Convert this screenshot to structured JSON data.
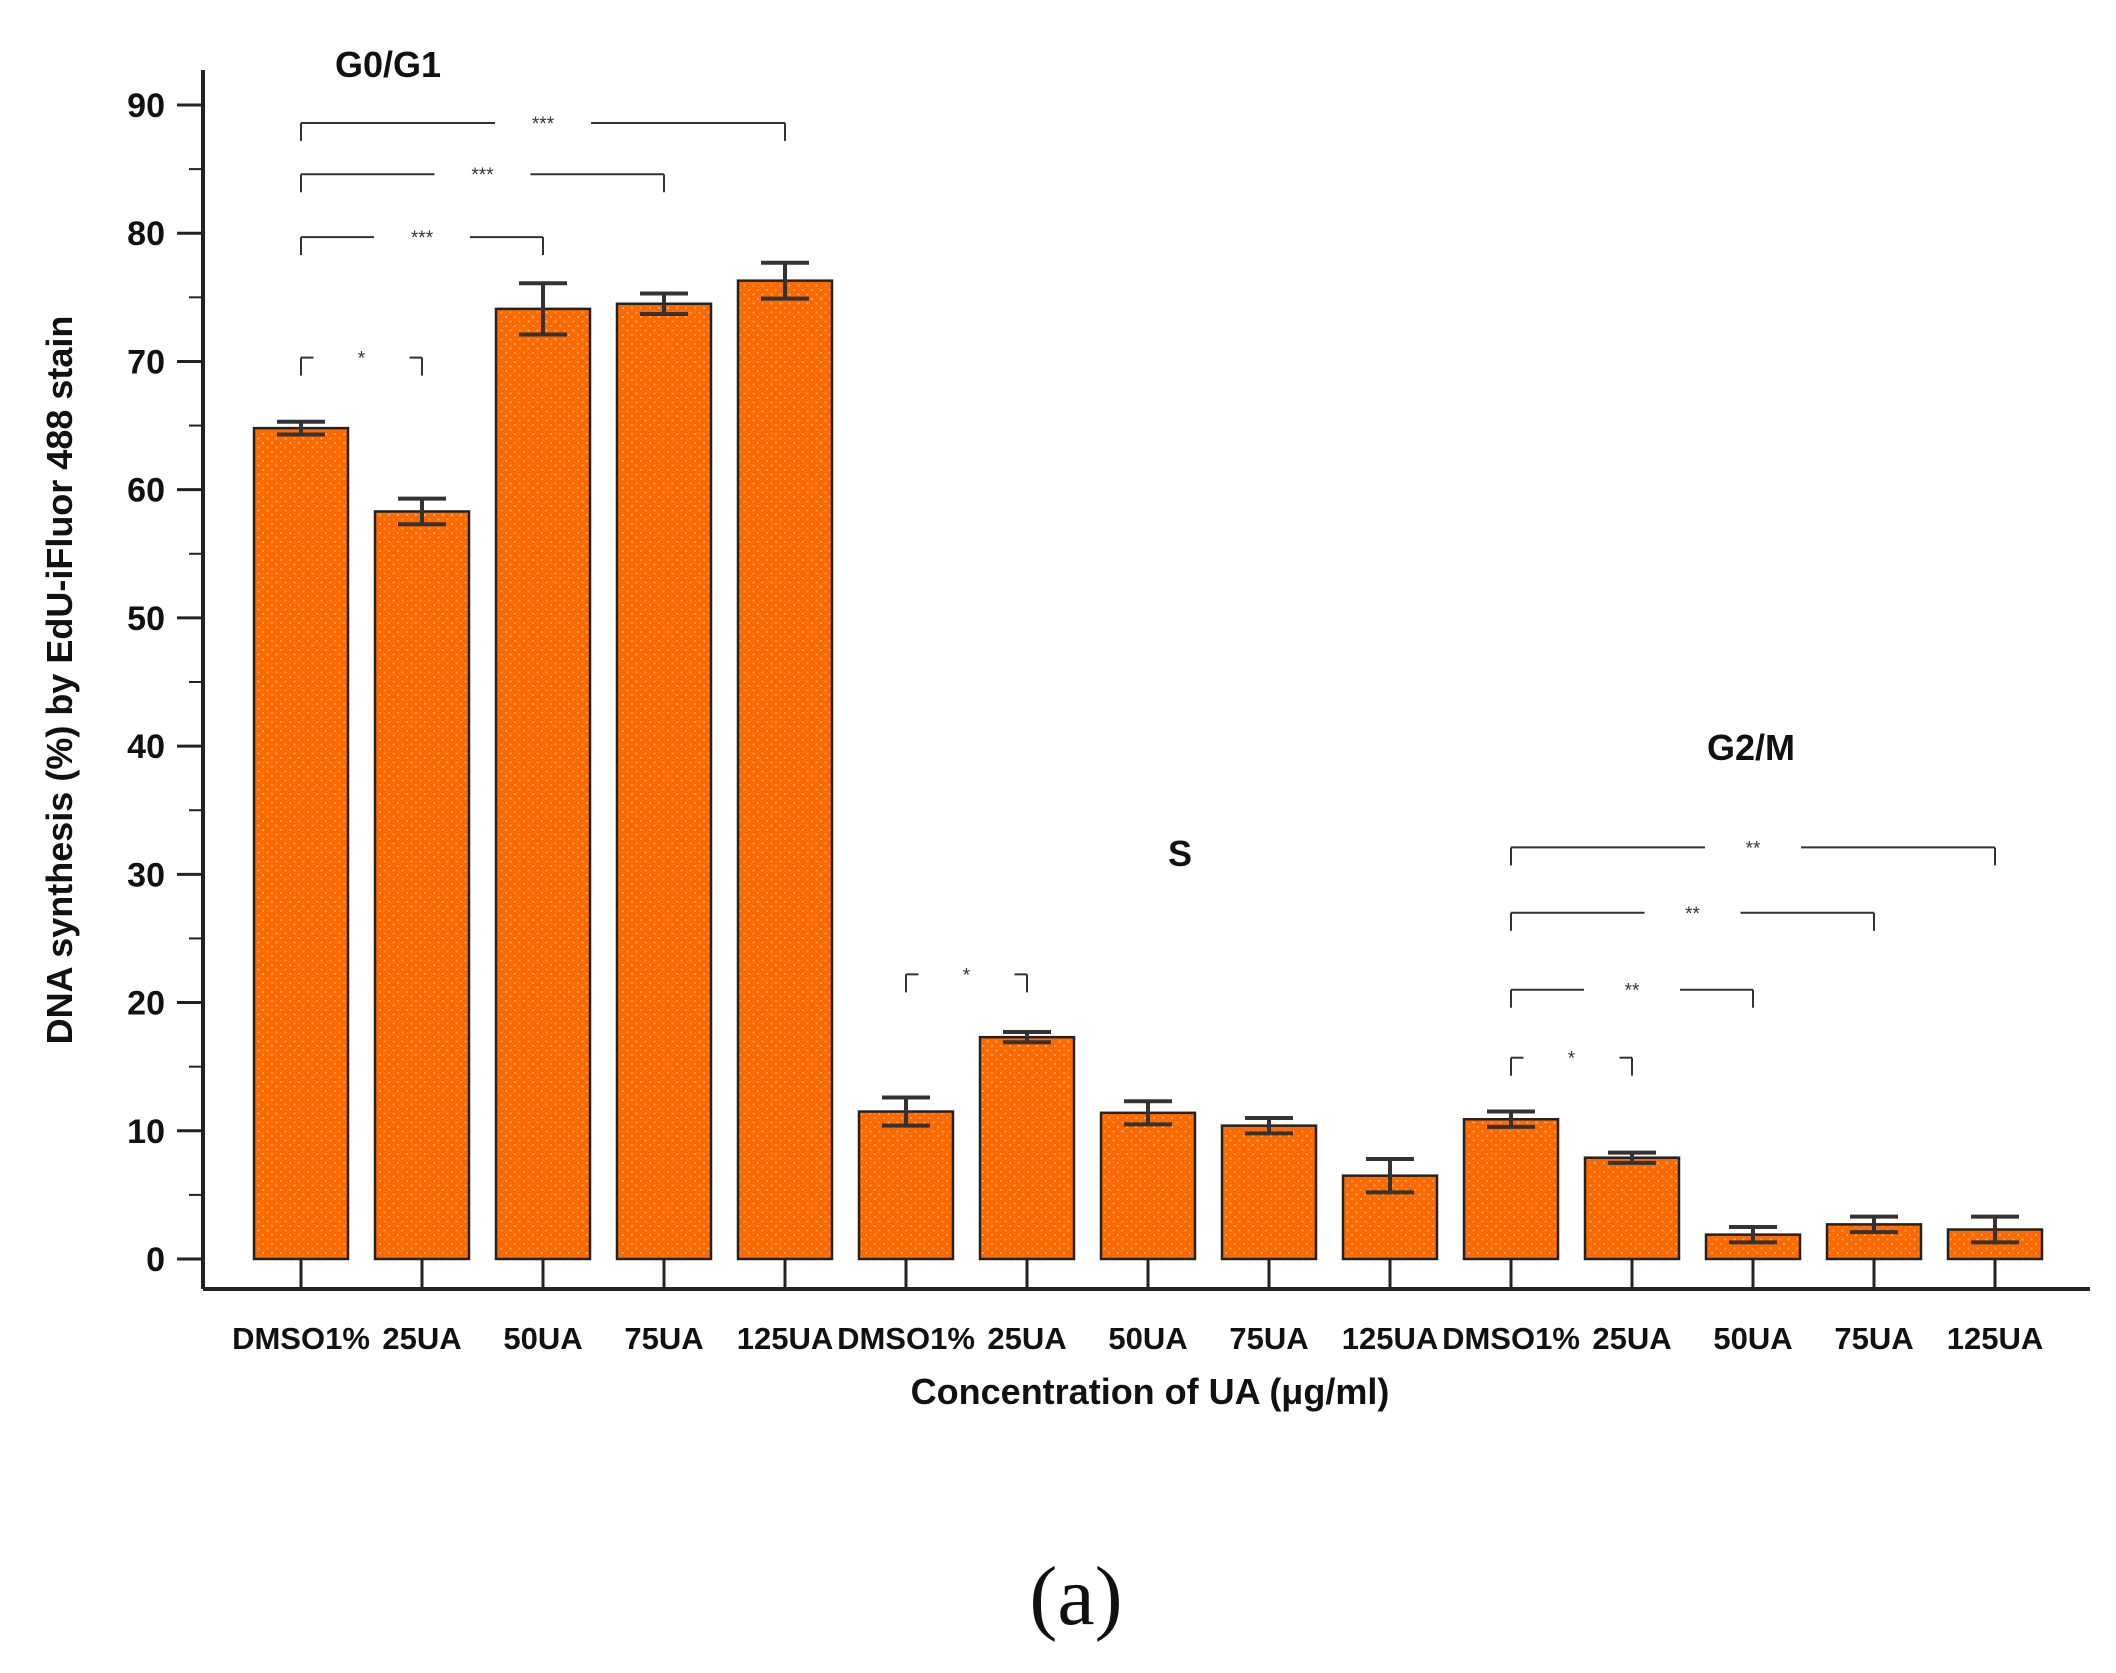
{
  "chart_data": {
    "type": "bar",
    "xlabel": "Concentration of UA (μg/ml)",
    "ylabel": "DNA synthesis (%) by EdU-iFluor 488 stain",
    "ylim": [
      0,
      90
    ],
    "yticks": [
      0,
      10,
      20,
      30,
      40,
      50,
      60,
      70,
      80,
      90
    ],
    "panel_label": "(a)",
    "bar_color": "#ff6a00",
    "groups": [
      {
        "name": "G0/G1",
        "start": 0,
        "end": 4
      },
      {
        "name": "S",
        "start": 5,
        "end": 9
      },
      {
        "name": "G2/M",
        "start": 10,
        "end": 14
      }
    ],
    "categories": [
      "DMSO1%",
      "25UA",
      "50UA",
      "75UA",
      "125UA",
      "DMSO1%",
      "25UA",
      "50UA",
      "75UA",
      "125UA",
      "DMSO1%",
      "25UA",
      "50UA",
      "75UA",
      "125UA"
    ],
    "values": [
      64.8,
      58.3,
      74.1,
      74.5,
      76.3,
      11.5,
      17.3,
      11.4,
      10.4,
      6.5,
      10.9,
      7.9,
      1.9,
      2.7,
      2.3
    ],
    "errors": [
      0.5,
      1.0,
      2.0,
      0.8,
      1.4,
      1.1,
      0.4,
      0.9,
      0.6,
      1.3,
      0.6,
      0.4,
      0.6,
      0.6,
      1.0
    ],
    "significance": [
      {
        "from": 0,
        "to": 1,
        "label": "*",
        "y": 70.3
      },
      {
        "from": 0,
        "to": 2,
        "label": "***",
        "y": 79.7
      },
      {
        "from": 0,
        "to": 3,
        "label": "***",
        "y": 84.6
      },
      {
        "from": 0,
        "to": 4,
        "label": "***",
        "y": 88.6
      },
      {
        "from": 5,
        "to": 6,
        "label": "*",
        "y": 22.2
      },
      {
        "from": 10,
        "to": 11,
        "label": "*",
        "y": 15.7
      },
      {
        "from": 10,
        "to": 12,
        "label": "**",
        "y": 21.0
      },
      {
        "from": 10,
        "to": 13,
        "label": "**",
        "y": 27.0
      },
      {
        "from": 10,
        "to": 14,
        "label": "**",
        "y": 32.1
      }
    ]
  }
}
